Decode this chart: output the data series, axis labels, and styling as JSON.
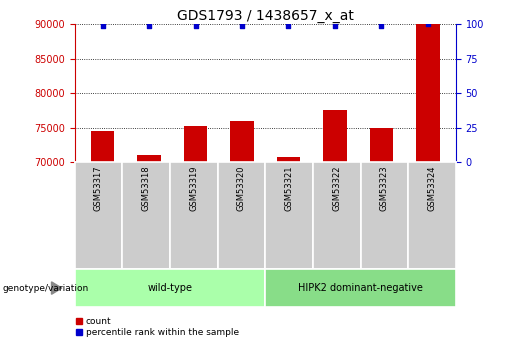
{
  "title": "GDS1793 / 1438657_x_at",
  "samples": [
    "GSM53317",
    "GSM53318",
    "GSM53319",
    "GSM53320",
    "GSM53321",
    "GSM53322",
    "GSM53323",
    "GSM53324"
  ],
  "counts": [
    74500,
    71000,
    75200,
    76000,
    70800,
    77500,
    74900,
    90000
  ],
  "percentiles": [
    99,
    99,
    99,
    99,
    99,
    99,
    99,
    100
  ],
  "ylim_left": [
    70000,
    90000
  ],
  "ylim_right": [
    0,
    100
  ],
  "yticks_left": [
    70000,
    75000,
    80000,
    85000,
    90000
  ],
  "yticks_right": [
    0,
    25,
    50,
    75,
    100
  ],
  "bar_color": "#cc0000",
  "percentile_color": "#0000cc",
  "groups": [
    {
      "label": "wild-type",
      "n": 4,
      "color": "#aaffaa"
    },
    {
      "label": "HIPK2 dominant-negative",
      "n": 4,
      "color": "#88dd88"
    }
  ],
  "xlabel_group": "genotype/variation",
  "legend_count_label": "count",
  "legend_pct_label": "percentile rank within the sample",
  "title_fontsize": 10,
  "tick_fontsize": 7,
  "sample_fontsize": 6,
  "group_fontsize": 7,
  "legend_fontsize": 6.5
}
